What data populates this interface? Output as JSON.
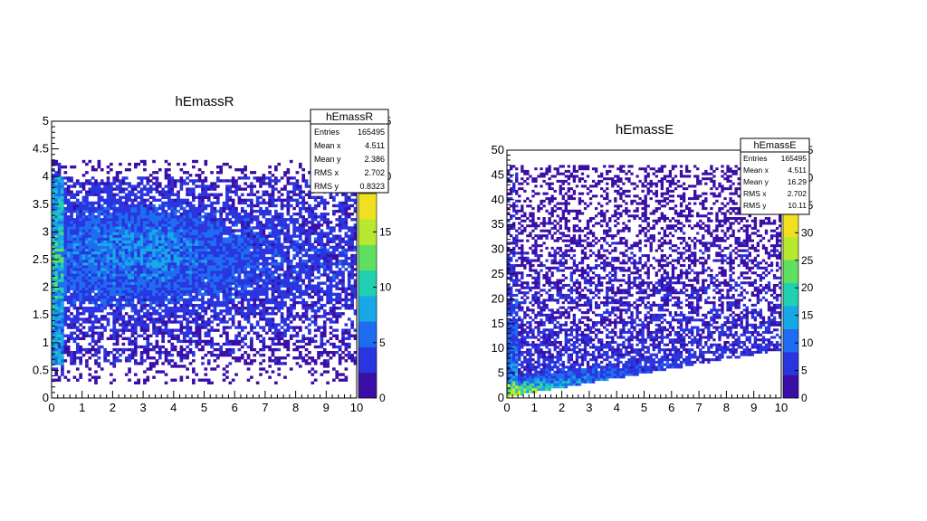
{
  "chart_data": [
    {
      "type": "heatmap",
      "title": "hEmassR",
      "xlabel": "",
      "ylabel": "",
      "xlim": [
        0,
        10
      ],
      "ylim": [
        0,
        5
      ],
      "x_ticks": [
        "0",
        "1",
        "2",
        "3",
        "4",
        "5",
        "6",
        "7",
        "8",
        "9",
        "10"
      ],
      "y_ticks": [
        "0",
        "0.5",
        "1",
        "1.5",
        "2",
        "2.5",
        "3",
        "3.5",
        "4",
        "4.5",
        "5"
      ],
      "z_range": [
        0,
        25
      ],
      "z_ticks": [
        "0",
        "5",
        "10",
        "15",
        "20",
        "25"
      ],
      "stats": {
        "name": "hEmassR",
        "rows": [
          {
            "label": "Entries",
            "value": "165495"
          },
          {
            "label": "Mean x",
            "value": "4.511"
          },
          {
            "label": "Mean y",
            "value": "2.386"
          },
          {
            "label": "RMS x",
            "value": "2.702"
          },
          {
            "label": "RMS y",
            "value": "0.8323"
          }
        ]
      },
      "distribution": "2D histogram: counts spread roughly uniformly over x 0-10 and y 0.3-4.2, densest near x≈3, y≈2.7"
    },
    {
      "type": "heatmap",
      "title": "hEmassE",
      "xlabel": "",
      "ylabel": "",
      "xlim": [
        0,
        10
      ],
      "ylim": [
        0,
        50
      ],
      "x_ticks": [
        "0",
        "1",
        "2",
        "3",
        "4",
        "5",
        "6",
        "7",
        "8",
        "9",
        "10"
      ],
      "y_ticks": [
        "0",
        "5",
        "10",
        "15",
        "20",
        "25",
        "30",
        "35",
        "40",
        "45",
        "50"
      ],
      "z_range": [
        0,
        45
      ],
      "z_ticks": [
        "0",
        "5",
        "10",
        "15",
        "20",
        "25",
        "30",
        "35",
        "40",
        "45"
      ],
      "stats": {
        "name": "hEmassE",
        "rows": [
          {
            "label": "Entries",
            "value": "165495"
          },
          {
            "label": "Mean x",
            "value": "4.511"
          },
          {
            "label": "Mean y",
            "value": "16.29"
          },
          {
            "label": "RMS x",
            "value": "2.702"
          },
          {
            "label": "RMS y",
            "value": "10.11"
          }
        ]
      },
      "distribution": "2D histogram bounded below by y ≈ x; densest along the lower edge near x 0-2, y 0-5, sparse up to y≈45"
    }
  ],
  "palette": [
    "#3b0fa6",
    "#2a35e0",
    "#1e6cf0",
    "#18a8e8",
    "#20d0b0",
    "#60e060",
    "#b8e830",
    "#f0e020"
  ]
}
